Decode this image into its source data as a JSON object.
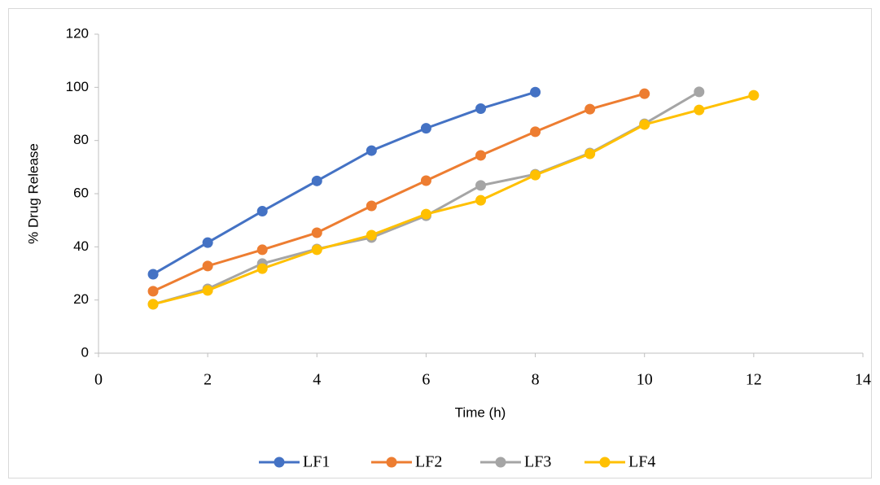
{
  "chart_data": {
    "type": "line",
    "x_label": "Time (h)",
    "y_label": "% Drug Release",
    "x": [
      1,
      2,
      3,
      4,
      5,
      6,
      7,
      8,
      9,
      10,
      11,
      12
    ],
    "series": [
      {
        "name": "LF1",
        "color": "#4472c4",
        "values": [
          29.7,
          41.6,
          53.4,
          64.8,
          76.2,
          84.6,
          92,
          98.2,
          null,
          null,
          null,
          null
        ]
      },
      {
        "name": "LF2",
        "color": "#ed7d31",
        "values": [
          23.3,
          32.8,
          38.9,
          45.3,
          55.4,
          64.9,
          74.4,
          83.3,
          91.8,
          97.6,
          null,
          null
        ]
      },
      {
        "name": "LF3",
        "color": "#a5a5a5",
        "values": [
          18.4,
          24.2,
          33.7,
          39.2,
          43.5,
          51.7,
          63.1,
          67.3,
          75.3,
          86.3,
          98.3,
          null
        ]
      },
      {
        "name": "LF4",
        "color": "#ffc000",
        "values": [
          18.4,
          23.6,
          31.8,
          38.9,
          44.4,
          52.3,
          57.5,
          67,
          75,
          86,
          91.5,
          97
        ]
      }
    ],
    "xlim": [
      0,
      14
    ],
    "xticks": [
      0,
      2,
      4,
      6,
      8,
      10,
      12,
      14
    ],
    "ylim": [
      0,
      120
    ],
    "yticks": [
      0,
      20,
      40,
      60,
      80,
      100,
      120
    ],
    "grid": false,
    "legend": "bottom"
  }
}
